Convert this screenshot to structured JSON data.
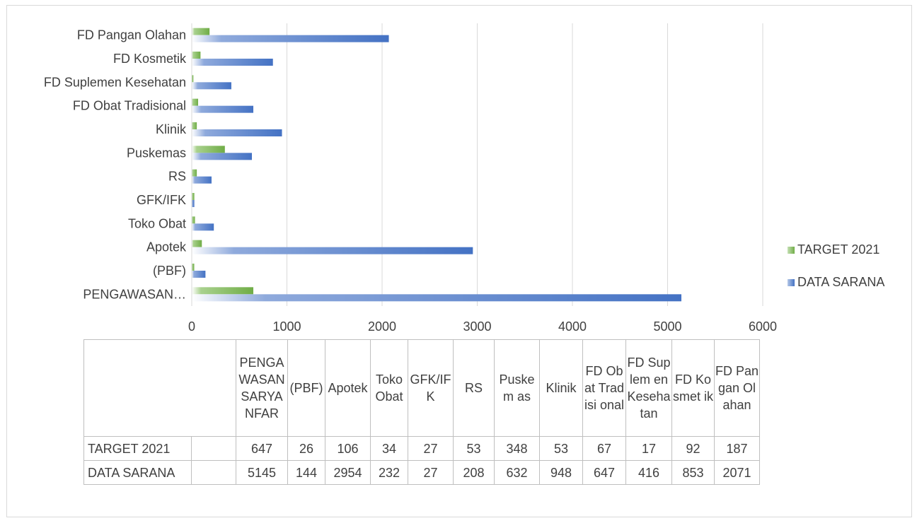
{
  "chart_data": {
    "type": "bar",
    "orientation": "horizontal",
    "categories": [
      "PENGAWASAN SARYANFAR",
      "(PBF)",
      "Apotek",
      "Toko Obat",
      "GFK/IFK",
      "RS",
      "Puskemas",
      "Klinik",
      "FD Obat Tradisional",
      "FD Suplemen Kesehatan",
      "FD Kosmetik",
      "FD Pangan Olahan"
    ],
    "axis_labels": [
      "PENGAWASAN…",
      "(PBF)",
      "Apotek",
      "Toko Obat",
      "GFK/IFK",
      "RS",
      "Puskemas",
      "Klinik",
      "FD Obat Tradisional",
      "FD Suplemen Kesehatan",
      "FD Kosmetik",
      "FD Pangan Olahan"
    ],
    "table_headers": [
      "PENGA WASAN SARYA NFAR",
      "(PBF)",
      "Apotek",
      "Toko Obat",
      "GFK/IF K",
      "RS",
      "Puskem as",
      "Klinik",
      "FD Obat Tradisi onal",
      "FD Suplem en Keseha tan",
      "FD Kosmet ik",
      "FD Pangan Olahan"
    ],
    "series": [
      {
        "name": "TARGET 2021",
        "color": "#70ad47",
        "values": [
          647,
          26,
          106,
          34,
          27,
          53,
          348,
          53,
          67,
          17,
          92,
          187
        ]
      },
      {
        "name": "DATA SARANA",
        "color": "#4472c4",
        "values": [
          5145,
          144,
          2954,
          232,
          27,
          208,
          632,
          948,
          647,
          416,
          853,
          2071
        ]
      }
    ],
    "xlim": [
      0,
      6000
    ],
    "xticks": [
      0,
      1000,
      2000,
      3000,
      4000,
      5000,
      6000
    ],
    "grid": true,
    "legend": "right"
  }
}
